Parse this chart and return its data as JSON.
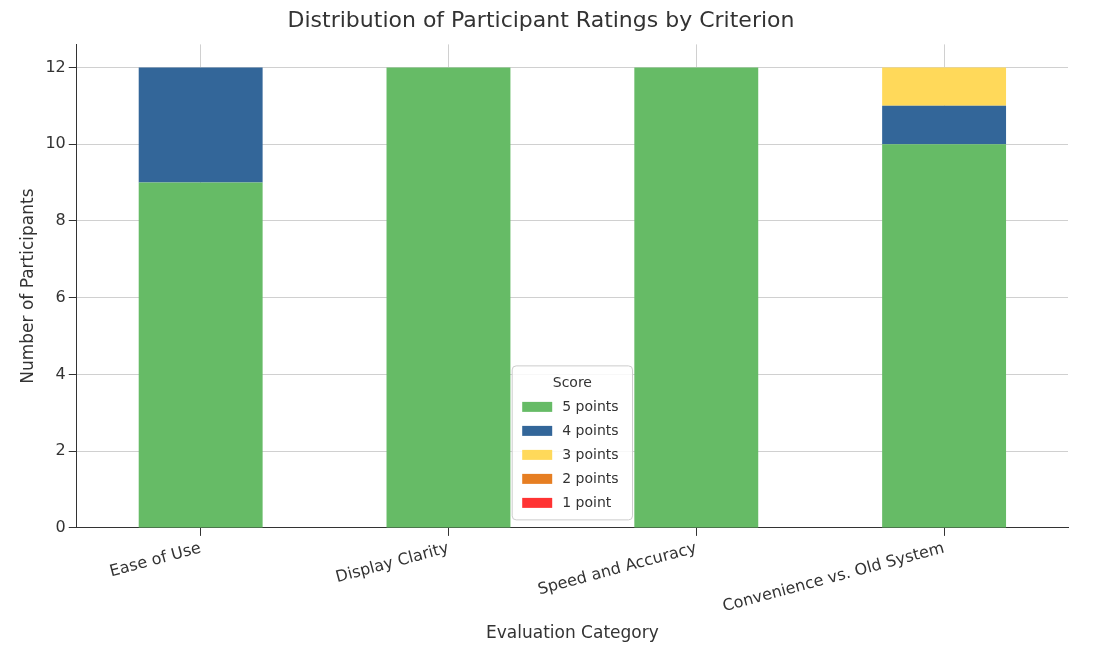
{
  "chart_data": {
    "type": "bar",
    "stacked": true,
    "title": "Distribution of Participant Ratings by Criterion",
    "xlabel": "Evaluation Category",
    "ylabel": "Number of Participants",
    "legend_title": "Score",
    "legend": "bottom",
    "grid": true,
    "categories": [
      "Ease of Use",
      "Display Clarity",
      "Speed and Accuracy",
      "Convenience vs. Old System"
    ],
    "series": [
      {
        "name": "5 points",
        "color": "#66bb66",
        "values": [
          9,
          12,
          12,
          10
        ]
      },
      {
        "name": "4 points",
        "color": "#336699",
        "values": [
          3,
          0,
          0,
          1
        ]
      },
      {
        "name": "3 points",
        "color": "#ffd95a",
        "values": [
          0,
          0,
          0,
          1
        ]
      },
      {
        "name": "2 points",
        "color": "#e67e22",
        "values": [
          0,
          0,
          0,
          0
        ]
      },
      {
        "name": "1 point",
        "color": "#ff3333",
        "values": [
          0,
          0,
          0,
          0
        ]
      }
    ],
    "ylim": [
      0,
      12.6
    ],
    "yticks": [
      0,
      2,
      4,
      6,
      8,
      10,
      12
    ]
  }
}
